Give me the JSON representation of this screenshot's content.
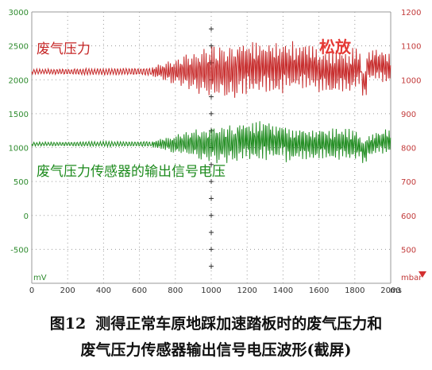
{
  "screen": {
    "left_axis": {
      "ticks": [
        "3000",
        "2500",
        "2000",
        "1500",
        "1000",
        "500",
        "0",
        "-500"
      ],
      "unit": "mV",
      "color": "#2e8b2e"
    },
    "right_axis": {
      "ticks": [
        "1200",
        "1100",
        "1000",
        "900",
        "800",
        "700",
        "600",
        "500"
      ],
      "unit": "mbar",
      "color": "#c23a3a"
    },
    "x_axis": {
      "ticks": [
        "0",
        "200",
        "400",
        "600",
        "800",
        "1000",
        "1200",
        "1400",
        "1600",
        "1800",
        "2000"
      ],
      "unit": "ms"
    },
    "annotations": {
      "pressure_label": "废气压力",
      "voltage_label": "废气压力传感器的输出信号电压",
      "release_label": "松放"
    },
    "colors": {
      "pressure_trace": "#c62828",
      "voltage_trace": "#1e8b1e",
      "grid": "#9a9a9a",
      "release_label": "#e53935"
    }
  },
  "caption": {
    "figure_no": "图12",
    "line1": "测得正常车原地踩加速踏板时的废气压力和",
    "line2": "废气压力传感器输出信号电压波形(截屏)"
  }
}
